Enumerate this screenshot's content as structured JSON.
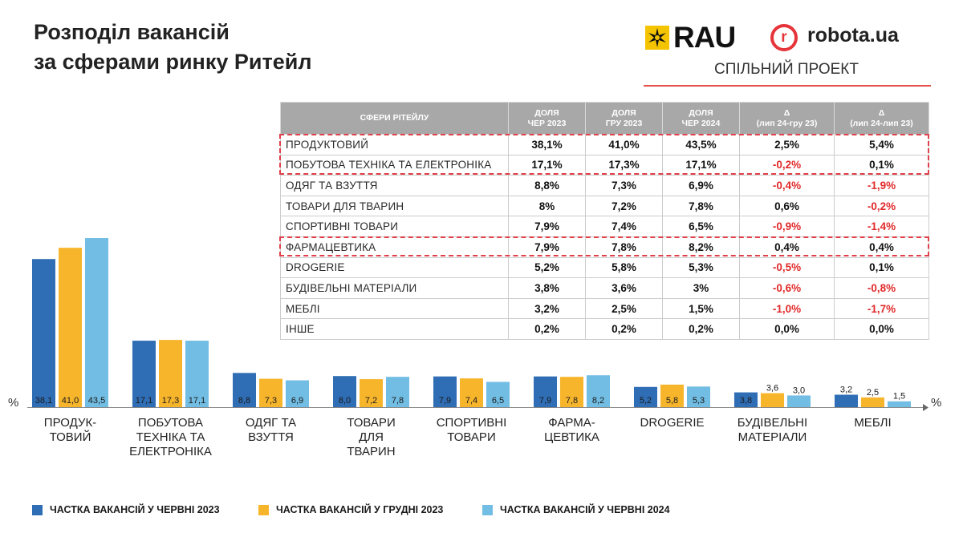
{
  "title": {
    "line1": "Розподіл вакансій",
    "line2": "за сферами ринку Ритейл"
  },
  "logos": {
    "rau": "RAU",
    "robota_mark": "r",
    "robota": "robota.ua",
    "subtitle": "СПІЛЬНИЙ ПРОЕКТ"
  },
  "colors": {
    "jun2023": "#2f6db5",
    "dec2023": "#f7b52c",
    "jun2024": "#72bde3",
    "negative": "#e12a2a"
  },
  "table": {
    "headers": [
      [
        "СФЕРИ РІТЕЙЛУ"
      ],
      [
        "ДОЛЯ",
        "ЧЕР 2023"
      ],
      [
        "ДОЛЯ",
        "ГРУ 2023"
      ],
      [
        "ДОЛЯ",
        "ЧЕР 2024"
      ],
      [
        "Δ",
        "(лип 24-гру 23)"
      ],
      [
        "Δ",
        "(лип 24-лип 23)"
      ]
    ],
    "rows": [
      [
        "ПРОДУКТОВИЙ",
        "38,1%",
        "41,0%",
        "43,5%",
        "2,5%",
        "5,4%"
      ],
      [
        "ПОБУТОВА ТЕХНІКА ТА ЕЛЕКТРОНІКА",
        "17,1%",
        "17,3%",
        "17,1%",
        "-0,2%",
        "0,1%"
      ],
      [
        "ОДЯГ ТА ВЗУТТЯ",
        "8,8%",
        "7,3%",
        "6,9%",
        "-0,4%",
        "-1,9%"
      ],
      [
        "ТОВАРИ ДЛЯ ТВАРИН",
        "8%",
        "7,2%",
        "7,8%",
        "0,6%",
        "-0,2%"
      ],
      [
        "СПОРТИВНІ ТОВАРИ",
        "7,9%",
        "7,4%",
        "6,5%",
        "-0,9%",
        "-1,4%"
      ],
      [
        "ФАРМАЦЕВТИКА",
        "7,9%",
        "7,8%",
        "8,2%",
        "0,4%",
        "0,4%"
      ],
      [
        "DROGERIE",
        "5,2%",
        "5,8%",
        "5,3%",
        "-0,5%",
        "0,1%"
      ],
      [
        "БУДІВЕЛЬНІ МАТЕРІАЛИ",
        "3,8%",
        "3,6%",
        "3%",
        "-0,6%",
        "-0,8%"
      ],
      [
        "МЕБЛІ",
        "3,2%",
        "2,5%",
        "1,5%",
        "-1,0%",
        "-1,7%"
      ],
      [
        "ІНШЕ",
        "0,2%",
        "0,2%",
        "0,2%",
        "0,0%",
        "0,0%"
      ]
    ]
  },
  "chart_data": {
    "type": "bar",
    "title": "Розподіл вакансій за сферами ринку Ритейл",
    "xlabel": "",
    "ylabel": "%",
    "y_unit_left": "%",
    "y_unit_right": "%",
    "ylim": [
      0,
      45
    ],
    "grid": false,
    "legend_position": "bottom",
    "categories": [
      [
        "ПРОДУК-",
        "ТОВИЙ"
      ],
      [
        "ПОБУТОВА",
        "ТЕХНІКА ТА",
        "ЕЛЕКТРОНІКА"
      ],
      [
        "ОДЯГ ТА",
        "ВЗУТТЯ"
      ],
      [
        "ТОВАРИ",
        "ДЛЯ",
        "ТВАРИН"
      ],
      [
        "СПОРТИВНІ",
        "ТОВАРИ"
      ],
      [
        "ФАРМА-",
        "ЦЕВТИКА"
      ],
      [
        "DROGERIE"
      ],
      [
        "БУДІВЕЛЬНІ",
        "МАТЕРІАЛИ"
      ],
      [
        "МЕБЛІ"
      ]
    ],
    "series": [
      {
        "name": "ЧАСТКА ВАКАНСІЙ У ЧЕРВНІ 2023",
        "color": "#2f6db5",
        "values": [
          38.1,
          17.1,
          8.8,
          8.0,
          7.9,
          7.9,
          5.2,
          3.8,
          3.2
        ],
        "labels": [
          "38,1",
          "17,1",
          "8,8",
          "8,0",
          "7,9",
          "7,9",
          "5,2",
          "3,8",
          "3,2"
        ]
      },
      {
        "name": "ЧАСТКА ВАКАНСІЙ У ГРУДНІ 2023",
        "color": "#f7b52c",
        "values": [
          41.0,
          17.3,
          7.3,
          7.2,
          7.4,
          7.8,
          5.8,
          3.6,
          2.5
        ],
        "labels": [
          "41,0",
          "17,3",
          "7,3",
          "7,2",
          "7,4",
          "7,8",
          "5,8",
          "3,6",
          "2,5"
        ]
      },
      {
        "name": "ЧАСТКА ВАКАНСІЙ У ЧЕРВНІ 2024",
        "color": "#72bde3",
        "values": [
          43.5,
          17.1,
          6.9,
          7.8,
          6.5,
          8.2,
          5.3,
          3.0,
          1.5
        ],
        "labels": [
          "43,5",
          "17,1",
          "6,9",
          "7,8",
          "6,5",
          "8,2",
          "5,3",
          "3,0",
          "1,5"
        ]
      }
    ]
  }
}
